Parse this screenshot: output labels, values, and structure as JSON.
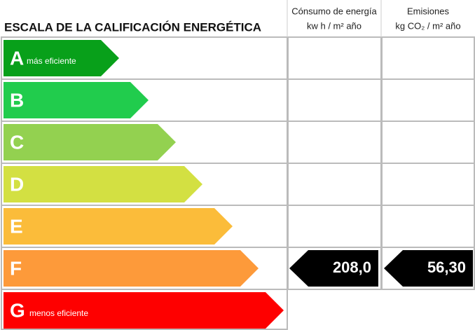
{
  "title": "ESCALA DE LA CALIFICACIÓN ENERGÉTICA",
  "headers": [
    {
      "line1": "Cónsumo de energía",
      "line2": "kw h / m² año"
    },
    {
      "line1": "Emisiones",
      "line2": "kg CO₂ / m² año"
    }
  ],
  "classes": [
    {
      "letter": "A",
      "note": "más eficiente",
      "color": "#08a01a"
    },
    {
      "letter": "B",
      "color": "#21cc4d"
    },
    {
      "letter": "C",
      "color": "#93d150"
    },
    {
      "letter": "D",
      "color": "#d3e042"
    },
    {
      "letter": "E",
      "color": "#fbbc3a"
    },
    {
      "letter": "F",
      "color": "#fd9a3a",
      "energy": "208,0",
      "emissions": "56,30"
    },
    {
      "letter": "G",
      "note": "menos eficiente",
      "color": "#fe0000"
    }
  ]
}
